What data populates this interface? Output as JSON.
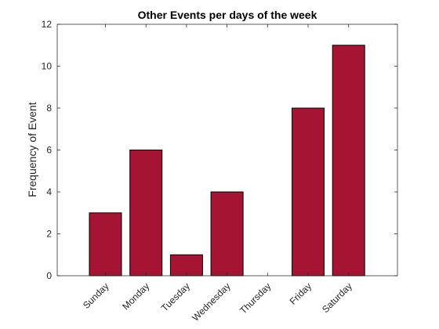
{
  "chart_data": {
    "type": "bar",
    "title": "Other Events per days of the week",
    "xlabel": "",
    "ylabel": "Frequency of Event",
    "categories": [
      "Sunday",
      "Monday",
      "Tuesday",
      "Wednesday",
      "Thursday",
      "Friday",
      "Saturday"
    ],
    "values": [
      3,
      6,
      1,
      4,
      0,
      8,
      11
    ],
    "ylim": [
      0,
      12
    ],
    "yticks": [
      "0",
      "2",
      "4",
      "6",
      "8",
      "10",
      "12"
    ],
    "grid": false,
    "legend": "none",
    "colors": {
      "bar_fill": "#A51432",
      "bar_edge": "#000000",
      "axis": "#262626"
    }
  }
}
